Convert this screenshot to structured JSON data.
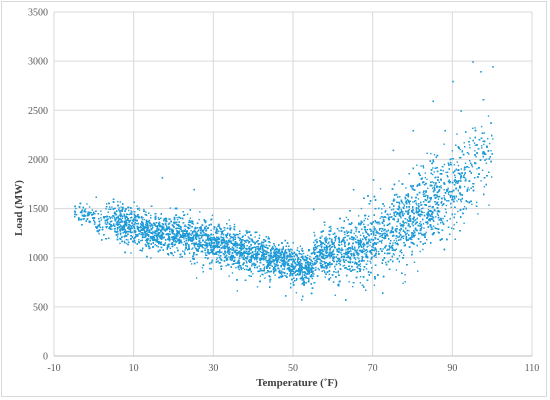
{
  "chart_data": {
    "type": "scatter",
    "title": "",
    "xlabel": "Temperature (˚F)",
    "ylabel": "Load (MW)",
    "xlim": [
      -10,
      110
    ],
    "ylim": [
      0,
      3500
    ],
    "x_ticks": [
      -10,
      10,
      30,
      50,
      70,
      90,
      110
    ],
    "y_ticks": [
      0,
      500,
      1000,
      1500,
      2000,
      2500,
      3000,
      3500
    ],
    "grid": true,
    "legend": "none",
    "series": [
      {
        "color": "#1f9bd7",
        "points": [
          [
            -5,
            1480
          ],
          [
            0,
            1350
          ],
          [
            5,
            1300
          ],
          [
            10,
            1450
          ],
          [
            15,
            1200
          ],
          [
            17,
            1820
          ],
          [
            20,
            1250
          ],
          [
            25,
            1150
          ],
          [
            25,
            1700
          ],
          [
            30,
            1050
          ],
          [
            35,
            1300
          ],
          [
            40,
            950
          ],
          [
            45,
            1150
          ],
          [
            48,
            620
          ],
          [
            50,
            800
          ],
          [
            52,
            580
          ],
          [
            55,
            900
          ],
          [
            55,
            1500
          ],
          [
            60,
            760
          ],
          [
            60,
            1000
          ],
          [
            65,
            1200
          ],
          [
            65,
            1700
          ],
          [
            70,
            1150
          ],
          [
            70,
            1800
          ],
          [
            75,
            1500
          ],
          [
            75,
            2100
          ],
          [
            80,
            1700
          ],
          [
            80,
            2300
          ],
          [
            83,
            1250
          ],
          [
            85,
            2000
          ],
          [
            85,
            2600
          ],
          [
            88,
            2300
          ],
          [
            90,
            1600
          ],
          [
            90,
            2800
          ],
          [
            92,
            2500
          ],
          [
            95,
            3000
          ],
          [
            95,
            2200
          ],
          [
            97,
            2900
          ],
          [
            100,
            2950
          ],
          [
            98,
            2000
          ]
        ]
      }
    ]
  }
}
